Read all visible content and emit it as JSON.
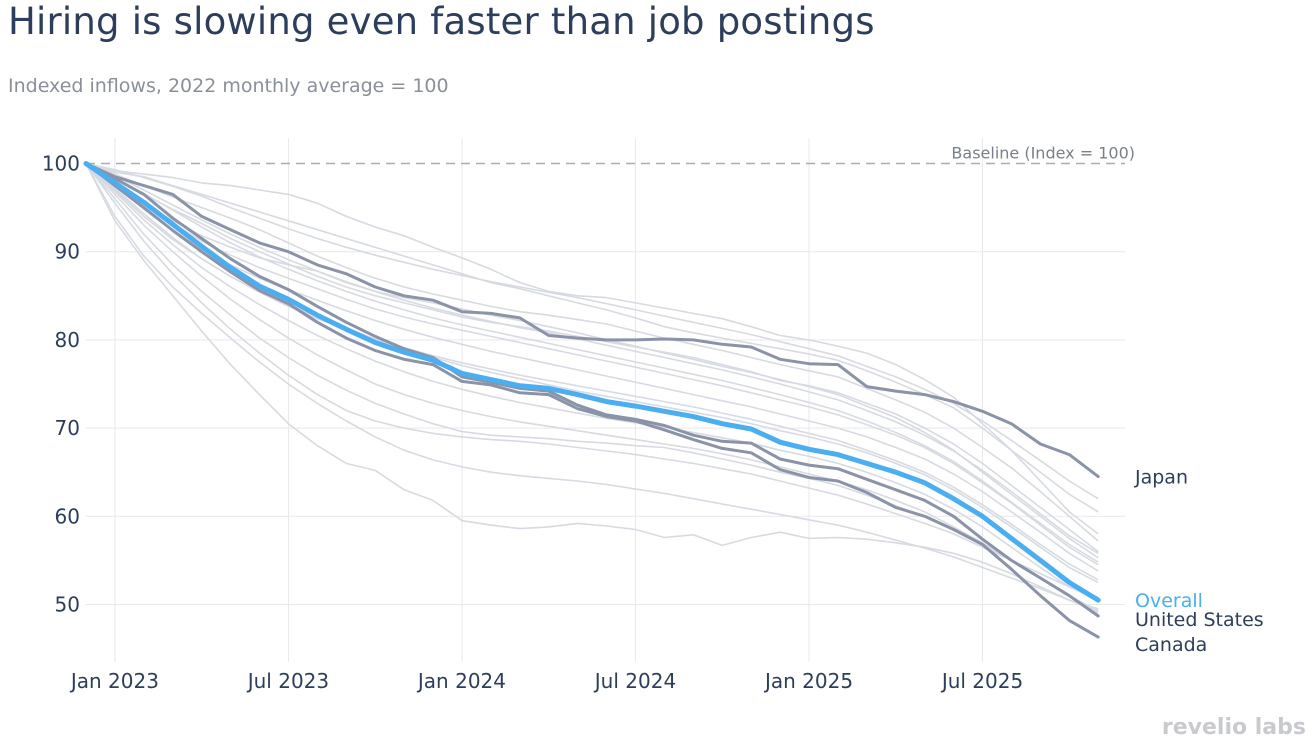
{
  "title": "Hiring is slowing even faster than job postings",
  "subtitle": "Indexed inflows, 2022 monthly average = 100",
  "brand": "revelio labs",
  "colors": {
    "overall": "#4aaef0",
    "highlight": "#8a93a8",
    "background_series": "#d7dae2",
    "baseline": "#a9adb4",
    "axis_text": "#2c3e5c",
    "grid": "#e8e9ec"
  },
  "chart_data": {
    "type": "line",
    "title": "Hiring is slowing even faster than job postings",
    "subtitle": "Indexed inflows, 2022 monthly average = 100",
    "xlabel": "",
    "ylabel": "",
    "ylim": [
      44,
      104
    ],
    "y_ticks": [
      100,
      90,
      80,
      70,
      60,
      50
    ],
    "x_ticks": [
      "Jan 2023",
      "Jul 2023",
      "Jan 2024",
      "Jul 2024",
      "Jan 2025",
      "Jul 2025"
    ],
    "x_tick_index": [
      1,
      7,
      13,
      19,
      25,
      31
    ],
    "x_start": "Dec 2022",
    "x_end": "Nov 2025",
    "baseline": {
      "value": 100,
      "label": "Baseline (Index = 100)"
    },
    "highlighted_series": [
      {
        "name": "Japan",
        "role": "highlight",
        "values": [
          100,
          98.5,
          97.5,
          96.5,
          94,
          92.5,
          91,
          90,
          88.5,
          87.5,
          86,
          85,
          84.5,
          83.2,
          83,
          82.5,
          80.5,
          80.2,
          80,
          80,
          80.1,
          80,
          79.5,
          79.2,
          77.8,
          77.3,
          77.2,
          74.7,
          74.2,
          73.8,
          73,
          71.9,
          70.5,
          68.2,
          67,
          64.5
        ]
      },
      {
        "name": "Overall",
        "role": "overall",
        "values": [
          100,
          97.8,
          95.6,
          93.1,
          90.6,
          88.2,
          86.1,
          84.6,
          82.8,
          81.2,
          79.7,
          78.6,
          77.7,
          76.2,
          75.5,
          74.8,
          74.5,
          73.8,
          73,
          72.5,
          71.9,
          71.3,
          70.5,
          69.9,
          68.4,
          67.6,
          67,
          66,
          65,
          63.8,
          62,
          60,
          57.5,
          55,
          52.5,
          50.5
        ]
      },
      {
        "name": "United States",
        "role": "highlight",
        "values": [
          100,
          98.3,
          96.5,
          93.8,
          91.5,
          89.2,
          87.2,
          85.7,
          83.8,
          82,
          80.4,
          79,
          78,
          75.8,
          75.2,
          74.5,
          74.2,
          72.6,
          71.5,
          71,
          70.3,
          69.2,
          68.5,
          68.3,
          66.5,
          65.8,
          65.4,
          64.2,
          63,
          61.8,
          60,
          57.4,
          55,
          53,
          51,
          48.7
        ]
      },
      {
        "name": "Canada",
        "role": "highlight",
        "values": [
          100,
          97.5,
          95,
          92.4,
          90,
          87.7,
          85.6,
          84.1,
          82,
          80.2,
          78.8,
          77.8,
          77.2,
          75.3,
          74.9,
          74,
          73.8,
          72.2,
          71.3,
          70.8,
          69.8,
          68.7,
          67.7,
          67.2,
          65.3,
          64.4,
          64,
          62.7,
          61,
          60,
          58.5,
          56.8,
          54,
          51,
          48.2,
          46.3
        ]
      }
    ],
    "background_series_values": [
      [
        100,
        99,
        98.5,
        97.5,
        96.5,
        95.5,
        94.5,
        93.5,
        92.5,
        91.5,
        90.5,
        89.5,
        88.5,
        87.5,
        86.5,
        85.8,
        85,
        84.2,
        83.4,
        82.5,
        81.5,
        80.8,
        80.2,
        79.6,
        79,
        78.4,
        77.7,
        76.5,
        75.2,
        73.8,
        72.3,
        70,
        67.5,
        65,
        62.5,
        60.5
      ],
      [
        100,
        99.2,
        98.8,
        98.4,
        97.8,
        97.5,
        97,
        96.5,
        95.5,
        94,
        92.8,
        91.8,
        90.5,
        89.3,
        88,
        86.5,
        85.5,
        85,
        84.8,
        84.2,
        83.6,
        83,
        82.4,
        81.5,
        80.5,
        80,
        79.3,
        78.5,
        77.2,
        75.5,
        73.5,
        70.5,
        67.5,
        64,
        60.5,
        58
      ],
      [
        100,
        98.8,
        97.5,
        96.2,
        95,
        93.8,
        92.5,
        91,
        89.5,
        88.2,
        87,
        86,
        85.2,
        84.5,
        83.8,
        83.2,
        82.8,
        82.3,
        81.8,
        81,
        80.2,
        79.5,
        78.8,
        78,
        77.2,
        76.5,
        75.8,
        74.5,
        73.2,
        71.8,
        70,
        67.8,
        65.5,
        62.8,
        60,
        57.2
      ],
      [
        100,
        98.2,
        96.5,
        94.8,
        93.2,
        91.5,
        90,
        88.6,
        87.2,
        86,
        85,
        84.2,
        83.4,
        82.6,
        82,
        81.5,
        81,
        80.4,
        79.8,
        79.2,
        78.6,
        78,
        77.2,
        76.4,
        75.4,
        74.8,
        74,
        72.8,
        71.6,
        70,
        68.2,
        66,
        63.5,
        61,
        58.5,
        56
      ],
      [
        100,
        98,
        95.5,
        93.5,
        91.8,
        90.5,
        89.3,
        88.5,
        87.8,
        86.5,
        85.5,
        84.8,
        84.2,
        83.5,
        82.8,
        82.2,
        81.5,
        80.8,
        80,
        79.3,
        78.5,
        77.8,
        77,
        76.3,
        75.5,
        74.7,
        73.8,
        72.5,
        71.2,
        69.5,
        67.5,
        65,
        62.5,
        60,
        57.5,
        55.3
      ],
      [
        100,
        97.8,
        95.5,
        93.2,
        91.2,
        89.6,
        88.2,
        87,
        85.8,
        84.6,
        83.5,
        82.6,
        81.8,
        81.1,
        80.4,
        79.7,
        79,
        78.3,
        77.6,
        76.9,
        76.2,
        75.5,
        74.8,
        74,
        73.2,
        72.4,
        71.5,
        70.4,
        69.2,
        67.8,
        66,
        63.8,
        61.5,
        59,
        56.5,
        54.5
      ],
      [
        100,
        97.5,
        94.8,
        92.4,
        90.3,
        88.5,
        87,
        85.7,
        84.5,
        83.3,
        82.2,
        81.2,
        80.3,
        79.5,
        78.7,
        78,
        77.3,
        76.6,
        75.9,
        75.2,
        74.5,
        73.8,
        73.1,
        72.4,
        71.6,
        70.8,
        70,
        69,
        67.8,
        66.5,
        64.8,
        62.8,
        60.5,
        58.2,
        55.8,
        53.8
      ],
      [
        100,
        97,
        94,
        91.4,
        89.2,
        87.2,
        85.5,
        84,
        82.6,
        81.3,
        80.1,
        79,
        78,
        77.1,
        76.3,
        75.6,
        74.9,
        74.2,
        73.6,
        73,
        72.4,
        71.8,
        71.2,
        70.5,
        69.7,
        69,
        68.2,
        67.2,
        66,
        64.7,
        63,
        61,
        58.8,
        56.5,
        54.2,
        52.5
      ],
      [
        100,
        96.8,
        93.6,
        90.8,
        88.2,
        86,
        84,
        82.2,
        80.5,
        79,
        77.6,
        76.4,
        75.3,
        74.4,
        73.6,
        72.9,
        72.3,
        71.7,
        71.1,
        70.6,
        70.1,
        69.5,
        68.9,
        68.3,
        67.5,
        66.8,
        66,
        65,
        63.8,
        62.5,
        60.8,
        58.8,
        56.5,
        54.2,
        52,
        50.5
      ],
      [
        100,
        96.5,
        93,
        90,
        87.2,
        84.6,
        82.3,
        80.2,
        78.3,
        76.6,
        75,
        73.8,
        72.8,
        72,
        71.3,
        70.7,
        70.2,
        69.7,
        69.2,
        68.7,
        68.2,
        67.7,
        67.1,
        66.4,
        65.6,
        64.8,
        64,
        63,
        61.8,
        60.5,
        58.8,
        57,
        55,
        53,
        51,
        49.3
      ],
      [
        100,
        96,
        92,
        88.5,
        85.5,
        82.8,
        80.2,
        78,
        76,
        74.3,
        72.8,
        71.6,
        70.5,
        69.6,
        69.2,
        69,
        68.8,
        68.5,
        68.3,
        68,
        67.8,
        67.2,
        66.5,
        65.8,
        65,
        64.3,
        63.5,
        62.4,
        61.2,
        60,
        58.5,
        56.8,
        55,
        53,
        51,
        49
      ],
      [
        100,
        95.5,
        91.2,
        87.5,
        84.2,
        81.2,
        78.5,
        76,
        73.8,
        72,
        70.8,
        70,
        69.4,
        69,
        68.7,
        68.5,
        68.2,
        67.8,
        67.4,
        67,
        66.5,
        66,
        65.4,
        64.8,
        64,
        63.2,
        62.4,
        61.4,
        60.3,
        59.2,
        58,
        56.5,
        55,
        53.5,
        52,
        50.8
      ],
      [
        100,
        94,
        89.5,
        86,
        83,
        80.2,
        77.5,
        75,
        72.8,
        70.8,
        69,
        67.5,
        66.4,
        65.6,
        65,
        64.6,
        64.3,
        64,
        63.6,
        63.1,
        62.6,
        62,
        61.4,
        60.8,
        60.2,
        59.6,
        59,
        58.2,
        57.3,
        56.4,
        55.4,
        54.2,
        53,
        51.8,
        50.5,
        49.5
      ],
      [
        100,
        93.5,
        89,
        85,
        81,
        77.2,
        73.8,
        70.5,
        68,
        66,
        65.2,
        63,
        61.8,
        59.5,
        59,
        58.6,
        58.8,
        59.2,
        58.9,
        58.5,
        57.6,
        57.9,
        56.7,
        57.6,
        58.2,
        57.5,
        57.6,
        57.4,
        57,
        56.5,
        55.8,
        54.8,
        53.5,
        52,
        50.5,
        49.2
      ],
      [
        100,
        99.3,
        98.4,
        97.4,
        96.3,
        95,
        93.8,
        92.6,
        91.5,
        90.5,
        89.6,
        88.8,
        88,
        87.3,
        86.6,
        86,
        85.4,
        84.8,
        84.1,
        83.4,
        82.7,
        82,
        81.3,
        80.6,
        79.8,
        79,
        78.2,
        77,
        75.8,
        74.4,
        72.8,
        70.8,
        68.6,
        66.3,
        64,
        62
      ],
      [
        100,
        98.6,
        97,
        95.3,
        93.6,
        92,
        90.5,
        89.1,
        87.8,
        86.6,
        85.5,
        84.5,
        83.6,
        82.8,
        82.1,
        81.4,
        80.8,
        80.1,
        79.4,
        78.7,
        78,
        77.3,
        76.6,
        75.8,
        75,
        74.1,
        73.2,
        72,
        70.7,
        69.2,
        67.4,
        65.2,
        62.8,
        60.3,
        57.8,
        55.8
      ],
      [
        100,
        98.4,
        96.6,
        94.7,
        92.8,
        91,
        89.4,
        88,
        86.7,
        85.5,
        84.4,
        83.4,
        82.5,
        81.7,
        81,
        80.3,
        79.6,
        78.9,
        78.2,
        77.5,
        76.8,
        76.1,
        75.4,
        74.6,
        73.8,
        72.9,
        72,
        70.8,
        69.5,
        68,
        66.2,
        64,
        61.6,
        59.2,
        56.8,
        54.8
      ],
      [
        100,
        97.2,
        94.3,
        91.6,
        89.2,
        87.2,
        85.4,
        83.8,
        82.4,
        81.2,
        80.1,
        79.1,
        78.2,
        77.4,
        76.7,
        76,
        75.4,
        74.8,
        74.2,
        73.6,
        73,
        72.4,
        71.7,
        71,
        70.2,
        69.4,
        68.6,
        67.5,
        66.3,
        65,
        63.3,
        61.3,
        59.1,
        56.8,
        54.6,
        52.8
      ]
    ]
  }
}
